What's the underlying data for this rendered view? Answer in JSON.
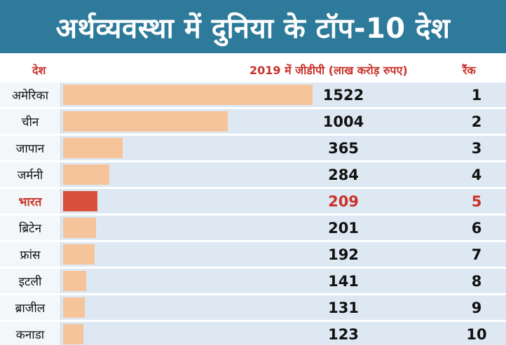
{
  "title": "अर्थव्यवस्था में दुनिया के टॉप-10 देश",
  "headers": {
    "country": "देश",
    "gdp": "2019 में जीडीपी (लाख करोड़ रुपए)",
    "rank": "रैंक"
  },
  "colors": {
    "title_bg": "#2d7a9a",
    "bar": "#f6c49b",
    "bar_highlight": "#d9503a",
    "highlight_text": "#c8322a",
    "row_bg": "#dde8f2"
  },
  "chart_data": {
    "type": "bar",
    "orientation": "horizontal",
    "title": "अर्थव्यवस्था में दुनिया के टॉप-10 देश",
    "xlabel": "2019 में जीडीपी (लाख करोड़ रुपए)",
    "ylabel": "देश",
    "categories": [
      "अमेरिका",
      "चीन",
      "जापान",
      "जर्मनी",
      "भारत",
      "ब्रिटेन",
      "फ्रांस",
      "इटली",
      "ब्राजील",
      "कनाडा"
    ],
    "values": [
      1522,
      1004,
      365,
      284,
      209,
      201,
      192,
      141,
      131,
      123
    ],
    "ranks": [
      "1",
      "2",
      "3",
      "4",
      "5",
      "6",
      "7",
      "8",
      "9",
      "10"
    ],
    "highlight_index": 4,
    "xlim": [
      0,
      1522
    ]
  }
}
